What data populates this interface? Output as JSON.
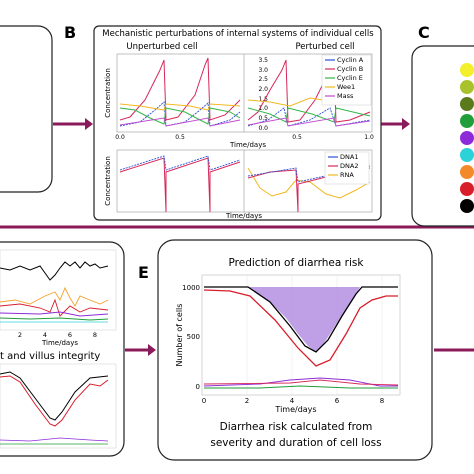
{
  "panels": {
    "B": {
      "letter": "B",
      "title": "Mechanistic perturbations of internal systems of individual cells",
      "sub_left": "Unperturbed cell",
      "sub_right": "Perturbed cell",
      "ylabel_top": "Concentration",
      "ylabel_bottom": "Concentration",
      "xlabel_top": "Time/days",
      "xlabel_bottom": "Time/days",
      "yticks_right": [
        "3.5",
        "3.0",
        "2.5",
        "2.0",
        "1.5",
        "1.0",
        "0.5",
        "0.0"
      ],
      "xticks": [
        "0.0",
        "0.5",
        "1.0"
      ],
      "legend_top": [
        "Cyclin A",
        "Cyclin B",
        "Cyclin E",
        "Wee1",
        "Mass"
      ],
      "legend_bottom": [
        "DNA1",
        "DNA2",
        "RNA"
      ]
    },
    "C": {
      "letter": "C"
    },
    "D": {
      "xlabel": "Time/days",
      "xticks": [
        "2",
        "4",
        "6",
        "8"
      ],
      "caption": "t and villus integrity"
    },
    "E": {
      "letter": "E",
      "title": "Prediction of diarrhea risk",
      "ylabel": "Number of cells",
      "yticks": [
        "1000",
        "500",
        "0"
      ],
      "xlabel": "Time/days",
      "xticks": [
        "0",
        "2",
        "4",
        "6",
        "8"
      ],
      "caption_line1": "Diarrhea risk calculated from",
      "caption_line2": "severity and duration of cell loss"
    }
  },
  "colors": {
    "arrow": "#8b1a5a",
    "cyclin_a": "#2b4fd6",
    "cyclin_b": "#d6285a",
    "cyclin_e": "#35b84a",
    "wee1": "#f2b822",
    "mass": "#c04bd0",
    "dna1": "#2b4fd6",
    "dna2": "#d6285a",
    "rna": "#f2b822",
    "fill_risk": "#b48ee0",
    "dot_list": [
      "#f4ef2c",
      "#a8c22c",
      "#5a7a1c",
      "#1f9e3a",
      "#8e2bd8",
      "#2bd2d8",
      "#f28a2b",
      "#d81e2b",
      "#000000"
    ]
  }
}
